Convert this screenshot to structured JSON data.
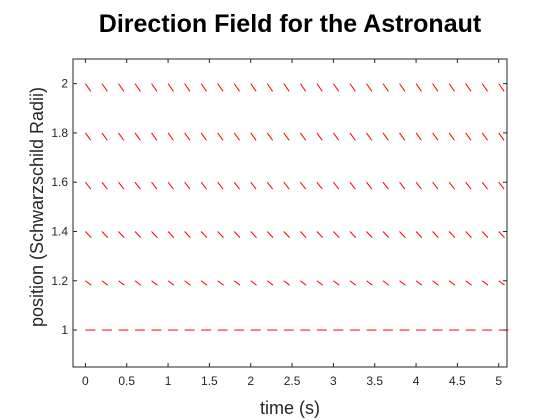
{
  "chart_data": {
    "type": "quiver",
    "title": "Direction Field for the Astronaut",
    "xlabel": "time (s)",
    "ylabel": "position (Schwarzschild Radii)",
    "xlim": [
      -0.15,
      5.1
    ],
    "ylim": [
      0.85,
      2.1
    ],
    "xticks": [
      0,
      0.5,
      1,
      1.5,
      2,
      2.5,
      3,
      3.5,
      4,
      4.5,
      5
    ],
    "xtick_labels": [
      "0",
      "0.5",
      "1",
      "1.5",
      "2",
      "2.5",
      "3",
      "3.5",
      "4",
      "4.5",
      "5"
    ],
    "yticks": [
      1,
      1.2,
      1.4,
      1.6,
      1.8,
      2
    ],
    "ytick_labels": [
      "1",
      "1.2",
      "1.4",
      "1.6",
      "1.8",
      "2"
    ],
    "grid": false,
    "box": true,
    "arrow_color": "#ff0000",
    "field": {
      "x": [
        0,
        0.2,
        0.4,
        0.6,
        0.8,
        1.0,
        1.2,
        1.4,
        1.6,
        1.8,
        2.0,
        2.2,
        2.4,
        2.6,
        2.8,
        3.0,
        3.2,
        3.4,
        3.6,
        3.8,
        4.0,
        4.2,
        4.4,
        4.6,
        4.8,
        5.0
      ],
      "rows": [
        {
          "y": 1.0,
          "dx": 0.12,
          "dy": 0.0
        },
        {
          "y": 1.2,
          "dx": 0.07,
          "dy": -0.018
        },
        {
          "y": 1.4,
          "dx": 0.07,
          "dy": -0.025
        },
        {
          "y": 1.6,
          "dx": 0.065,
          "dy": -0.028
        },
        {
          "y": 1.8,
          "dx": 0.065,
          "dy": -0.03
        },
        {
          "y": 2.0,
          "dx": 0.065,
          "dy": -0.031
        }
      ]
    }
  }
}
